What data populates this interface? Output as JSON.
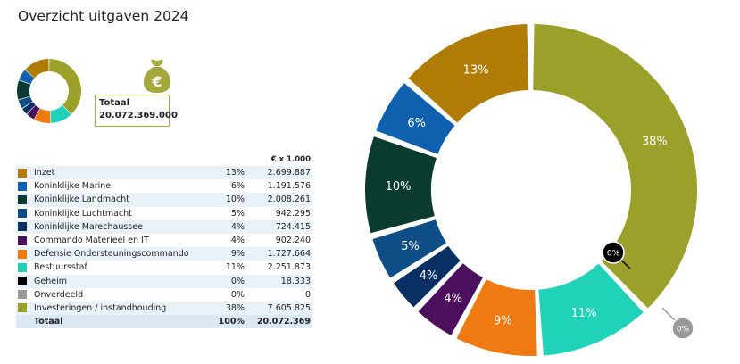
{
  "page": {
    "title": "Overzicht uitgaven 2024"
  },
  "total_box": {
    "label": "Totaal",
    "value": "20.072.369.000"
  },
  "icon": {
    "name": "money-bag-icon",
    "symbol": "€",
    "color": "#a5a83c"
  },
  "table": {
    "unit_header": "€ x 1.000",
    "rows": [
      {
        "label": "Inzet",
        "pct": "13%",
        "amount": "2.699.887",
        "color": "#b07c06"
      },
      {
        "label": "Koninklijke Marine",
        "pct": "6%",
        "amount": "1.191.576",
        "color": "#1060b0"
      },
      {
        "label": "Koninklijke Landmacht",
        "pct": "10%",
        "amount": "2.008.261",
        "color": "#0a3b2e"
      },
      {
        "label": "Koninklijke Luchtmacht",
        "pct": "5%",
        "amount": "942.295",
        "color": "#0e4d86"
      },
      {
        "label": "Koninklijke Marechaussee",
        "pct": "4%",
        "amount": "724.415",
        "color": "#0a2f63"
      },
      {
        "label": "Commando Materieel en IT",
        "pct": "4%",
        "amount": "902.240",
        "color": "#4b0f5e"
      },
      {
        "label": "Defensie Ondersteuningscommando",
        "pct": "9%",
        "amount": "1.727.664",
        "color": "#f07a12"
      },
      {
        "label": "Bestuursstaf",
        "pct": "11%",
        "amount": "2.251.873",
        "color": "#20d3b8"
      },
      {
        "label": "Geheim",
        "pct": "0%",
        "amount": "18.333",
        "color": "#000000"
      },
      {
        "label": "Onverdeeld",
        "pct": "0%",
        "amount": "0",
        "color": "#999999"
      },
      {
        "label": "Investeringen / instandhouding",
        "pct": "38%",
        "amount": "7.605.825",
        "color": "#9aa02a"
      }
    ],
    "total": {
      "label": "Totaal",
      "pct": "100%",
      "amount": "20.072.369"
    }
  },
  "chart_data": {
    "type": "pie",
    "donut": true,
    "categories": [
      "Investeringen / instandhouding",
      "Bestuursstaf",
      "Defensie Ondersteuningscommando",
      "Commando Materieel en IT",
      "Koninklijke Marechaussee",
      "Koninklijke Luchtmacht",
      "Koninklijke Landmacht",
      "Koninklijke Marine",
      "Inzet",
      "Geheim",
      "Onverdeeld"
    ],
    "values": [
      7605825,
      2251873,
      1727664,
      902240,
      724415,
      942295,
      2008261,
      1191576,
      2699887,
      18333,
      0
    ],
    "labels": [
      "38%",
      "11%",
      "9%",
      "4%",
      "4%",
      "5%",
      "10%",
      "6%",
      "13%",
      "0%",
      "0%"
    ],
    "colors": [
      "#9aa02a",
      "#20d3b8",
      "#f07a12",
      "#4b0f5e",
      "#0a2f63",
      "#0e4d86",
      "#0a3b2e",
      "#1060b0",
      "#b07c06",
      "#000000",
      "#999999"
    ]
  }
}
